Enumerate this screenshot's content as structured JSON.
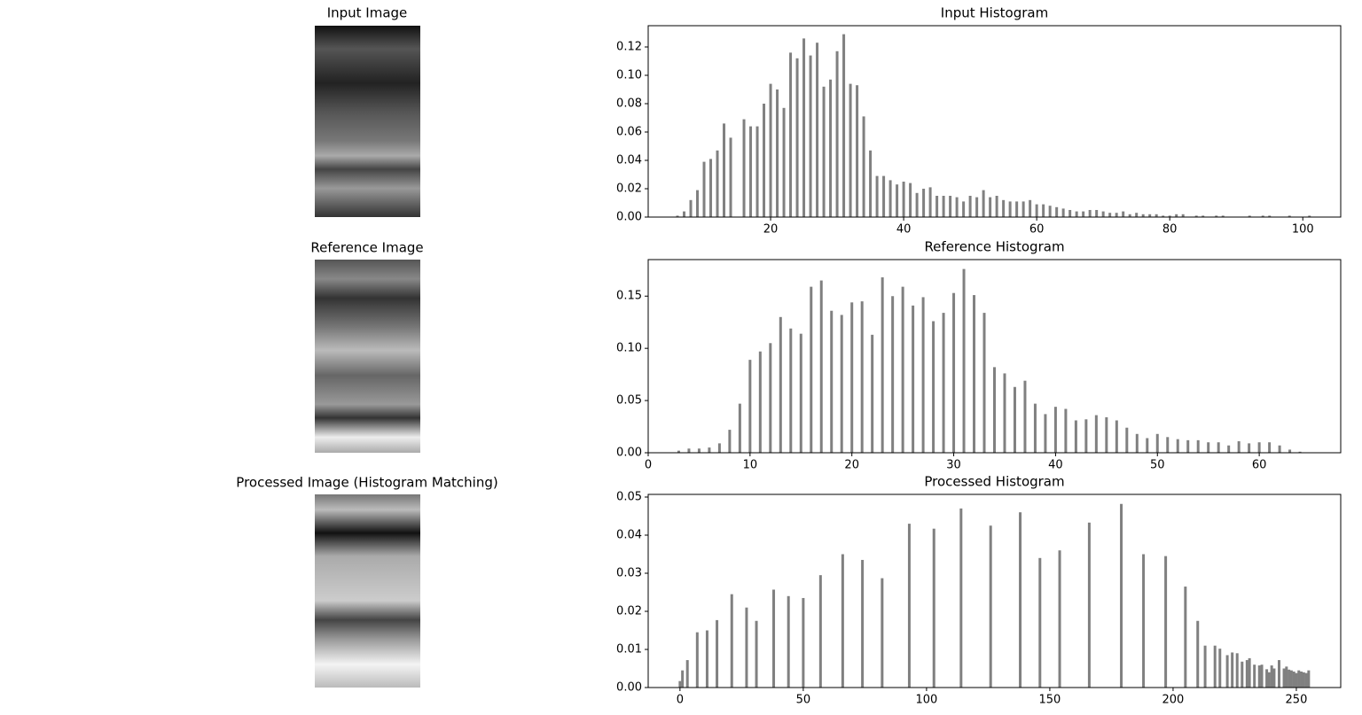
{
  "images": [
    {
      "title": "Input Image"
    },
    {
      "title": "Reference Image"
    },
    {
      "title": "Processed Image (Histogram Matching)"
    }
  ],
  "chart_data": [
    {
      "type": "bar",
      "title": "Input Histogram",
      "color": "#808080",
      "x": [
        6,
        7,
        8,
        9,
        10,
        11,
        12,
        13,
        14,
        16,
        17,
        18,
        19,
        20,
        21,
        22,
        23,
        24,
        25,
        26,
        27,
        28,
        29,
        30,
        31,
        32,
        33,
        34,
        35,
        36,
        37,
        38,
        39,
        40,
        41,
        42,
        43,
        44,
        45,
        46,
        47,
        48,
        49,
        50,
        51,
        52,
        53,
        54,
        55,
        56,
        57,
        58,
        59,
        60,
        61,
        62,
        63,
        64,
        65,
        66,
        67,
        68,
        69,
        70,
        71,
        72,
        73,
        74,
        75,
        76,
        77,
        78,
        79,
        80,
        81,
        82,
        84,
        85,
        87,
        88,
        92,
        94,
        95,
        98,
        101
      ],
      "values": [
        0.001,
        0.004,
        0.012,
        0.019,
        0.039,
        0.041,
        0.047,
        0.066,
        0.056,
        0.069,
        0.064,
        0.064,
        0.08,
        0.094,
        0.09,
        0.077,
        0.116,
        0.112,
        0.126,
        0.114,
        0.123,
        0.092,
        0.097,
        0.117,
        0.129,
        0.094,
        0.093,
        0.071,
        0.047,
        0.029,
        0.029,
        0.026,
        0.023,
        0.025,
        0.024,
        0.017,
        0.02,
        0.021,
        0.015,
        0.015,
        0.015,
        0.014,
        0.011,
        0.015,
        0.014,
        0.019,
        0.014,
        0.015,
        0.012,
        0.011,
        0.011,
        0.011,
        0.012,
        0.009,
        0.009,
        0.008,
        0.007,
        0.006,
        0.005,
        0.004,
        0.004,
        0.005,
        0.005,
        0.004,
        0.003,
        0.003,
        0.004,
        0.002,
        0.003,
        0.002,
        0.002,
        0.002,
        0.001,
        0.001,
        0.002,
        0.002,
        0.001,
        0.001,
        0.001,
        0.001,
        0.001,
        0.001,
        0.001,
        0.001,
        0.001
      ],
      "xlim": [
        1.6,
        105.7
      ],
      "ylim": [
        0,
        0.135
      ],
      "xticks": [
        20,
        40,
        60,
        80,
        100
      ],
      "yticks": [
        {
          "value": 0,
          "label": "0.00"
        },
        {
          "value": 0.02,
          "label": "0.02"
        },
        {
          "value": 0.04,
          "label": "0.04"
        },
        {
          "value": 0.06,
          "label": "0.06"
        },
        {
          "value": 0.08,
          "label": "0.08"
        },
        {
          "value": 0.1,
          "label": "0.10"
        },
        {
          "value": 0.12,
          "label": "0.12"
        }
      ]
    },
    {
      "type": "bar",
      "title": "Reference Histogram",
      "color": "#808080",
      "x": [
        3,
        4,
        5,
        6,
        7,
        8,
        9,
        10,
        11,
        12,
        13,
        14,
        15,
        16,
        17,
        18,
        19,
        20,
        21,
        22,
        23,
        24,
        25,
        26,
        27,
        28,
        29,
        30,
        31,
        32,
        33,
        34,
        35,
        36,
        37,
        38,
        39,
        40,
        41,
        42,
        43,
        44,
        45,
        46,
        47,
        48,
        49,
        50,
        51,
        52,
        53,
        54,
        55,
        56,
        57,
        58,
        59,
        60,
        61,
        62,
        63,
        64
      ],
      "values": [
        0.002,
        0.004,
        0.004,
        0.005,
        0.009,
        0.022,
        0.047,
        0.089,
        0.097,
        0.105,
        0.13,
        0.119,
        0.114,
        0.159,
        0.165,
        0.136,
        0.132,
        0.144,
        0.145,
        0.113,
        0.168,
        0.15,
        0.159,
        0.141,
        0.149,
        0.126,
        0.134,
        0.153,
        0.176,
        0.151,
        0.134,
        0.082,
        0.076,
        0.063,
        0.069,
        0.047,
        0.037,
        0.044,
        0.042,
        0.031,
        0.032,
        0.036,
        0.034,
        0.031,
        0.024,
        0.018,
        0.014,
        0.018,
        0.015,
        0.013,
        0.012,
        0.012,
        0.01,
        0.01,
        0.007,
        0.011,
        0.009,
        0.01,
        0.01,
        0.007,
        0.003,
        0.001
      ],
      "xlim": [
        0,
        68
      ],
      "ylim": [
        0,
        0.185
      ],
      "xticks": [
        0,
        10,
        20,
        30,
        40,
        50,
        60
      ],
      "yticks": [
        {
          "value": 0,
          "label": "0.00"
        },
        {
          "value": 0.05,
          "label": "0.05"
        },
        {
          "value": 0.1,
          "label": "0.10"
        },
        {
          "value": 0.15,
          "label": "0.15"
        }
      ]
    },
    {
      "type": "bar",
      "title": "Processed Histogram",
      "color": "#808080",
      "x": [
        0,
        1,
        3,
        7,
        11,
        15,
        21,
        27,
        31,
        38,
        44,
        50,
        57,
        66,
        74,
        82,
        93,
        103,
        114,
        126,
        138,
        146,
        154,
        166,
        179,
        188,
        197,
        205,
        210,
        213,
        217,
        219,
        222,
        224,
        226,
        228,
        230,
        231,
        233,
        235,
        236,
        238,
        239,
        240,
        241,
        243,
        245,
        246,
        247,
        248,
        249,
        250,
        251,
        252,
        253,
        254,
        255
      ],
      "values": [
        0.0017,
        0.0045,
        0.0072,
        0.0145,
        0.015,
        0.0177,
        0.0245,
        0.021,
        0.0175,
        0.0257,
        0.024,
        0.0235,
        0.0295,
        0.035,
        0.0335,
        0.0287,
        0.043,
        0.0417,
        0.047,
        0.0425,
        0.046,
        0.034,
        0.036,
        0.0433,
        0.0482,
        0.035,
        0.0345,
        0.0265,
        0.0175,
        0.011,
        0.011,
        0.0102,
        0.0085,
        0.0092,
        0.009,
        0.0068,
        0.0072,
        0.0077,
        0.006,
        0.0058,
        0.006,
        0.0048,
        0.004,
        0.0058,
        0.005,
        0.0072,
        0.005,
        0.0055,
        0.0047,
        0.0045,
        0.0042,
        0.0038,
        0.0045,
        0.0042,
        0.004,
        0.0038,
        0.0045
      ],
      "xlim": [
        -12.9,
        268
      ],
      "ylim": [
        0,
        0.0507
      ],
      "xticks": [
        0,
        50,
        100,
        150,
        200,
        250
      ],
      "yticks": [
        {
          "value": 0,
          "label": "0.00"
        },
        {
          "value": 0.01,
          "label": "0.01"
        },
        {
          "value": 0.02,
          "label": "0.02"
        },
        {
          "value": 0.03,
          "label": "0.03"
        },
        {
          "value": 0.04,
          "label": "0.04"
        },
        {
          "value": 0.05,
          "label": "0.05"
        }
      ]
    }
  ]
}
